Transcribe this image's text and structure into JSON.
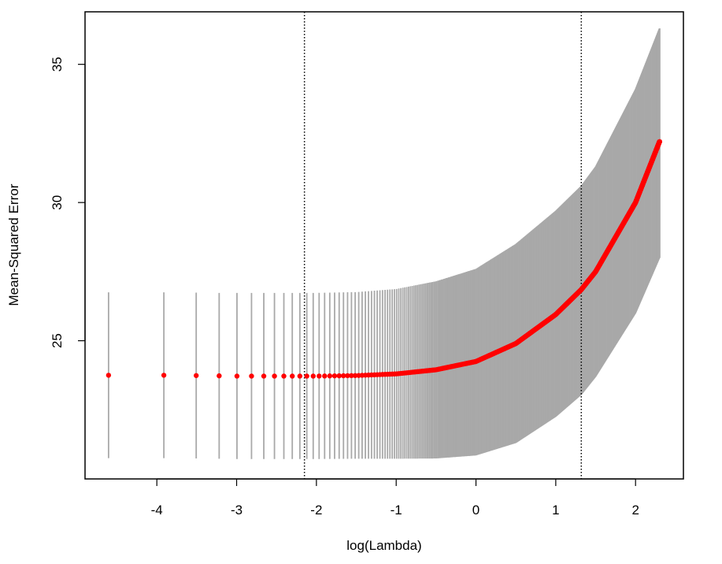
{
  "chart_data": {
    "type": "scatter",
    "title": "",
    "xlabel": "log(Lambda)",
    "ylabel": "Mean-Squared Error",
    "xlim": [
      -4.9,
      2.6
    ],
    "ylim": [
      20.0,
      36.9
    ],
    "x_ticks": [
      -4,
      -3,
      -2,
      -1,
      0,
      1,
      2
    ],
    "x_tick_labels": [
      "-4",
      "-3",
      "-2",
      "-1",
      "0",
      "1",
      "2"
    ],
    "y_ticks": [
      25,
      30,
      35
    ],
    "y_tick_labels": [
      "25",
      "30",
      "35"
    ],
    "grid": false,
    "legend": "none",
    "reference_lines_x": [
      -2.15,
      1.32
    ],
    "series": [
      {
        "x": [
          -4.61,
          -3.91,
          -3.51,
          -3.22,
          -3.0,
          -2.81,
          -2.66,
          -2.53,
          -2.41,
          -2.3,
          -2.21,
          -2.0,
          -1.5,
          -1.0,
          -0.5,
          0.0,
          0.5,
          1.0,
          1.32,
          1.5,
          2.0,
          2.3
        ],
        "y": [
          23.75,
          23.75,
          23.74,
          23.73,
          23.72,
          23.72,
          23.72,
          23.72,
          23.72,
          23.72,
          23.72,
          23.72,
          23.74,
          23.8,
          23.95,
          24.25,
          24.9,
          25.95,
          26.85,
          27.5,
          30.0,
          32.2
        ],
        "lower": [
          20.75,
          20.75,
          20.74,
          20.73,
          20.72,
          20.72,
          20.72,
          20.72,
          20.72,
          20.72,
          20.72,
          20.72,
          20.73,
          20.73,
          20.74,
          20.85,
          21.3,
          22.25,
          23.05,
          23.7,
          26.0,
          28.0
        ],
        "upper": [
          26.75,
          26.75,
          26.74,
          26.73,
          26.73,
          26.73,
          26.73,
          26.73,
          26.73,
          26.73,
          26.73,
          26.73,
          26.76,
          26.87,
          27.15,
          27.6,
          28.5,
          29.7,
          30.6,
          31.3,
          34.1,
          36.3
        ]
      }
    ],
    "colors": {
      "points": "#ff0000",
      "error_bars": "#a9a9a9",
      "reference_lines": "#000000",
      "axes": "#000000"
    }
  }
}
